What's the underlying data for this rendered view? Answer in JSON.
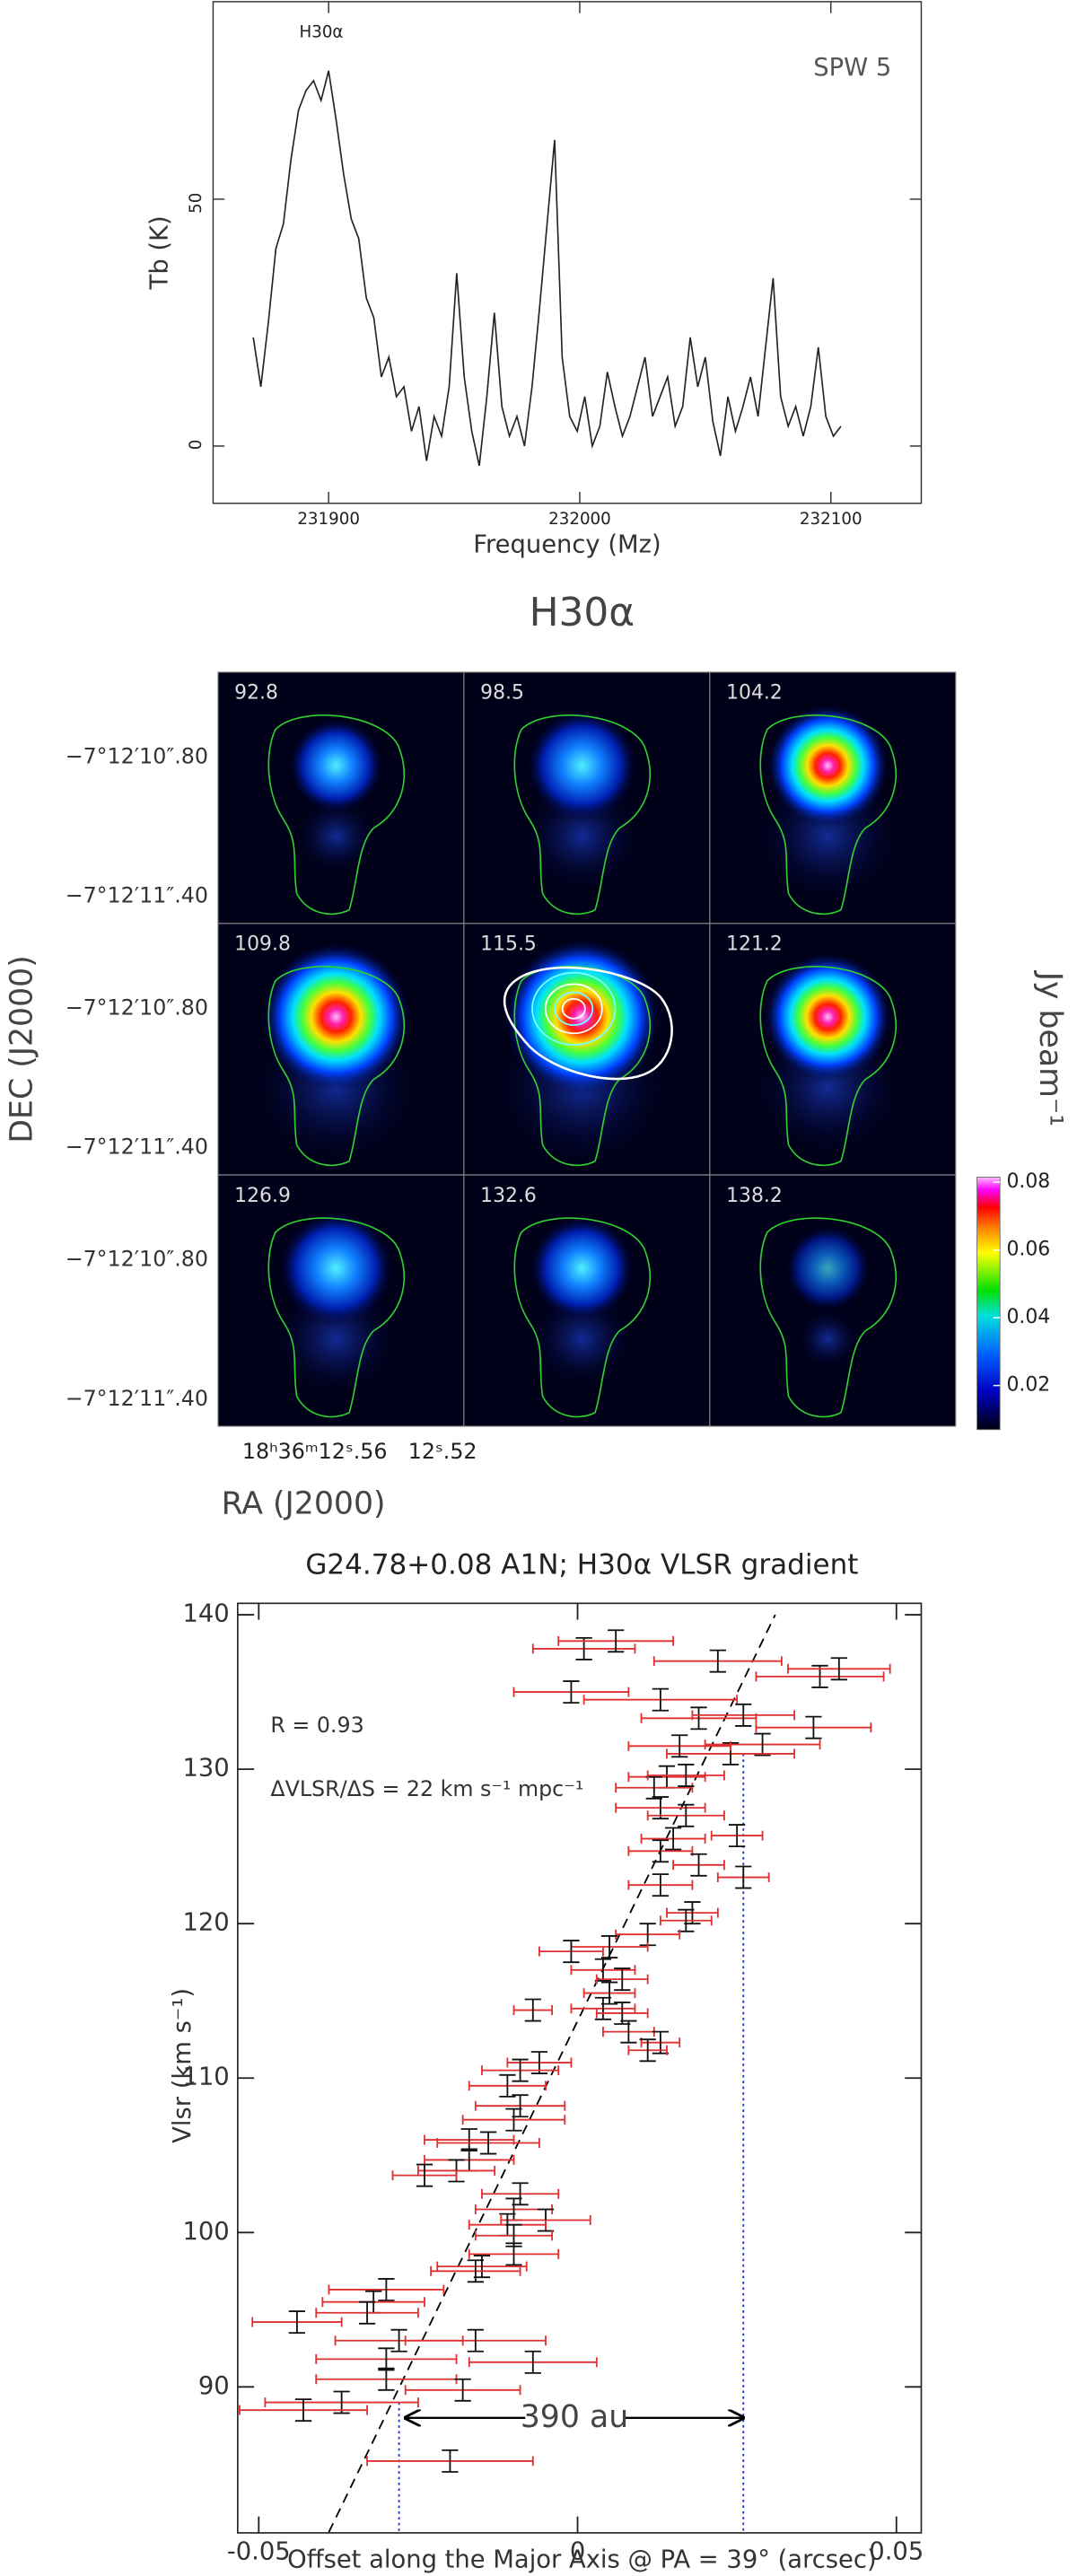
{
  "chart_data": [
    {
      "type": "line",
      "xlabel": "Frequency (Mz)",
      "ylabel": "Tb (K)",
      "annotations": [
        "H30α",
        "SPW 5"
      ],
      "color": "#222222",
      "x": [
        231870,
        231873,
        231876,
        231879,
        231882,
        231885,
        231888,
        231891,
        231894,
        231897,
        231900,
        231903,
        231906,
        231909,
        231912,
        231915,
        231918,
        231921,
        231924,
        231927,
        231930,
        231933,
        231936,
        231939,
        231942,
        231945,
        231948,
        231951,
        231954,
        231957,
        231960,
        231963,
        231966,
        231969,
        231972,
        231975,
        231978,
        231981,
        231984,
        231987,
        231990,
        231993,
        231996,
        231999,
        232002,
        232005,
        232008,
        232011,
        232014,
        232017,
        232020,
        232023,
        232026,
        232029,
        232032,
        232035,
        232038,
        232041,
        232044,
        232047,
        232050,
        232053,
        232056,
        232059,
        232062,
        232065,
        232068,
        232071,
        232074,
        232077,
        232080,
        232083,
        232086,
        232089,
        232092,
        232095,
        232098,
        232101,
        232104
      ],
      "values": [
        22,
        12,
        25,
        40,
        45,
        58,
        68,
        72,
        74,
        70,
        76,
        66,
        55,
        46,
        42,
        30,
        26,
        14,
        18,
        10,
        12,
        3,
        8,
        -3,
        6,
        2,
        12,
        35,
        14,
        3,
        -4,
        10,
        27,
        8,
        2,
        6,
        0,
        12,
        28,
        45,
        62,
        18,
        6,
        3,
        10,
        0,
        4,
        15,
        8,
        2,
        6,
        12,
        18,
        6,
        10,
        14,
        4,
        8,
        22,
        12,
        18,
        5,
        -2,
        10,
        3,
        8,
        14,
        6,
        20,
        34,
        10,
        4,
        8,
        2,
        8,
        20,
        6,
        2,
        4
      ],
      "xlim": [
        231854,
        232136
      ],
      "ylim": [
        -11.6,
        90
      ],
      "xticks": [
        231900,
        232000,
        232100
      ],
      "yticks": [
        0,
        50
      ]
    },
    {
      "type": "image",
      "title": "H30α",
      "panels": [
        "92.8",
        "98.5",
        "104.2",
        "109.8",
        "115.5",
        "121.2",
        "126.9",
        "132.6",
        "138.2"
      ],
      "dec_labels": [
        "−7°12′10″.80",
        "−7°12′11″.40"
      ],
      "ra_labels": [
        "18ʰ36ᵐ12ˢ.56",
        "12ˢ.52"
      ],
      "xlabel": "RA (J2000)",
      "ylabel": "DEC (J2000)",
      "colorbar": {
        "label": "Jy beam⁻¹",
        "lim": [
          0.007,
          0.0815
        ],
        "ticks": [
          0.02,
          0.04,
          0.06,
          0.08
        ]
      }
    },
    {
      "type": "scatter",
      "title": "G24.78+0.08 A1N;  H30α VLSR gradient",
      "xlabel": "Offset along the Major Axis @ PA = 39° (arcsec)",
      "ylabel": "Vlsr (km s⁻¹)",
      "annotations": [
        "R = 0.93",
        "ΔVLSR/ΔS = 22 km s⁻¹ mpc⁻¹"
      ],
      "xerr_color": "#e03030",
      "yerr_color": "#111111",
      "x": [
        0.001,
        0.006,
        0.022,
        -0.001,
        0.013,
        0.038,
        0.041,
        0.019,
        0.026,
        0.029,
        0.024,
        0.037,
        0.016,
        0.014,
        0.012,
        0.017,
        0.013,
        0.017,
        0.015,
        0.025,
        0.013,
        0.019,
        0.026,
        0.013,
        0.018,
        0.017,
        0.011,
        0.005,
        -0.001,
        0.004,
        0.007,
        0.005,
        0.004,
        0.007,
        -0.007,
        0.008,
        0.013,
        0.011,
        -0.006,
        -0.009,
        -0.011,
        -0.009,
        -0.01,
        -0.017,
        -0.014,
        -0.017,
        -0.019,
        -0.024,
        -0.009,
        -0.01,
        -0.005,
        -0.011,
        -0.01,
        -0.01,
        -0.015,
        -0.016,
        -0.03,
        -0.032,
        -0.033,
        -0.044,
        -0.016,
        -0.028,
        -0.03,
        -0.007,
        -0.03,
        -0.018,
        -0.037,
        -0.043,
        -0.02
      ],
      "y": [
        137.8,
        138.3,
        137,
        135,
        134.5,
        136,
        136.5,
        133.3,
        133.5,
        131.6,
        131,
        132.7,
        131.5,
        129.5,
        128.8,
        129.6,
        127.5,
        127,
        125.5,
        125.7,
        124.7,
        123.8,
        123,
        122.5,
        120.7,
        120.2,
        119.3,
        118.5,
        118.2,
        117,
        116.4,
        115.5,
        114.5,
        114.2,
        114.4,
        113,
        112.3,
        111.8,
        111,
        110.5,
        109.5,
        108.2,
        107.3,
        106,
        105.8,
        104.7,
        104,
        103.7,
        102.5,
        101.5,
        100.8,
        100.5,
        99.8,
        98.6,
        97.8,
        97.5,
        96.3,
        95.5,
        94.8,
        94.2,
        93,
        93,
        91.8,
        91.6,
        90.5,
        89.8,
        89,
        88.5,
        85.2
      ],
      "xerr": [
        0.008,
        0.009,
        0.01,
        0.009,
        0.012,
        0.01,
        0.008,
        0.009,
        0.008,
        0.009,
        0.01,
        0.009,
        0.008,
        0.006,
        0.006,
        0.006,
        0.007,
        0.006,
        0.005,
        0.004,
        0.005,
        0.004,
        0.004,
        0.005,
        0.004,
        0.004,
        0.005,
        0.006,
        0.005,
        0.005,
        0.004,
        0.004,
        0.005,
        0.004,
        0.003,
        0.004,
        0.003,
        0.003,
        0.005,
        0.006,
        0.006,
        0.007,
        0.008,
        0.007,
        0.008,
        0.007,
        0.006,
        0.005,
        0.006,
        0.006,
        0.007,
        0.006,
        0.006,
        0.007,
        0.007,
        0.007,
        0.009,
        0.008,
        0.008,
        0.007,
        0.011,
        0.01,
        0.011,
        0.01,
        0.011,
        0.009,
        0.012,
        0.01,
        0.013
      ],
      "yerr": [
        0.7,
        0.7,
        0.7,
        0.7,
        0.7,
        0.7,
        0.7,
        0.7,
        0.7,
        0.7,
        0.7,
        0.7,
        0.7,
        0.7,
        0.7,
        0.7,
        0.7,
        0.7,
        0.7,
        0.7,
        0.7,
        0.7,
        0.7,
        0.7,
        0.7,
        0.7,
        0.7,
        0.7,
        0.7,
        0.7,
        0.7,
        0.7,
        0.7,
        0.7,
        0.7,
        0.7,
        0.7,
        0.7,
        0.7,
        0.7,
        0.7,
        0.7,
        0.7,
        0.7,
        0.7,
        0.7,
        0.7,
        0.7,
        0.7,
        0.7,
        0.7,
        0.7,
        0.7,
        0.7,
        0.7,
        0.7,
        0.7,
        0.7,
        0.7,
        0.7,
        0.7,
        0.7,
        0.7,
        0.7,
        0.7,
        0.7,
        0.7,
        0.7,
        0.7
      ],
      "fit_line": {
        "x": [
          -0.039,
          0.031
        ],
        "y": [
          80.6,
          140
        ]
      },
      "markers": [
        {
          "x": -0.028,
          "y": 89
        },
        {
          "x": 0.026,
          "y": 131
        }
      ],
      "arrow": {
        "x": [
          -0.027,
          0.026
        ],
        "y": 88,
        "label": "390 au"
      },
      "xlim": [
        -0.0533,
        0.0539
      ],
      "ylim": [
        80.55,
        140.74
      ],
      "xticks": [
        -0.05,
        0,
        0.05
      ],
      "yticks": [
        90,
        100,
        110,
        120,
        130,
        140
      ]
    }
  ]
}
